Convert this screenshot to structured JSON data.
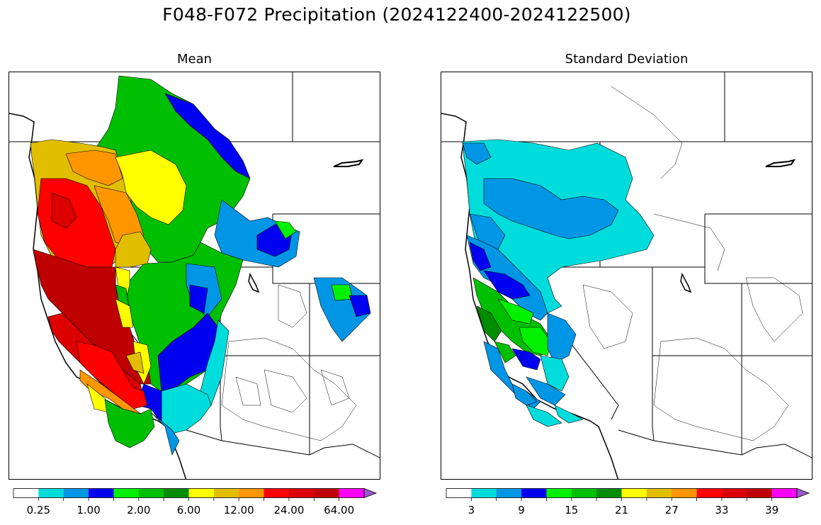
{
  "figure": {
    "title": "F048-F072 Precipitation (2024122400-2024122500)"
  },
  "panels": [
    {
      "title": "Mean",
      "colorbar": {
        "colors": [
          "#ffffff",
          "#00dcdc",
          "#0096e6",
          "#0000f0",
          "#00f000",
          "#00be00",
          "#008c00",
          "#ffff00",
          "#e1be00",
          "#ff9600",
          "#ff0000",
          "#dc0000",
          "#be0000",
          "#ff00ff",
          "#9b59c9"
        ],
        "tick_labels": [
          "0.25",
          "1.00",
          "2.00",
          "6.00",
          "12.00",
          "24.00",
          "64.00"
        ],
        "tick_label_positions": [
          1,
          3,
          5,
          7,
          9,
          11,
          13
        ]
      }
    },
    {
      "title": "Standard Deviation",
      "colorbar": {
        "colors": [
          "#ffffff",
          "#00dcdc",
          "#0096e6",
          "#0000f0",
          "#00f000",
          "#00be00",
          "#008c00",
          "#ffff00",
          "#e1be00",
          "#ff9600",
          "#ff0000",
          "#dc0000",
          "#be0000",
          "#ff00ff",
          "#9b59c9"
        ],
        "tick_labels": [
          "3",
          "9",
          "15",
          "21",
          "27",
          "33",
          "39"
        ],
        "tick_label_positions": [
          1,
          3,
          5,
          7,
          9,
          11,
          13
        ]
      }
    }
  ]
}
